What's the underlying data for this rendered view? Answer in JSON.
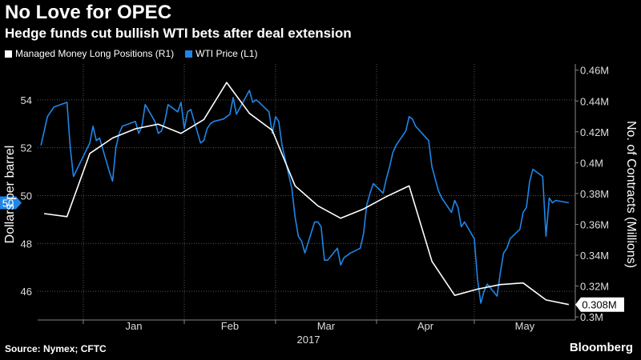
{
  "header": {
    "title": "No Love for OPEC",
    "subtitle": "Hedge funds cut bullish WTI bets after deal extension"
  },
  "footer": {
    "source": "Source: Nymex; CFTC",
    "brand": "Bloomberg"
  },
  "colors": {
    "background": "#000000",
    "wti": "#1f86e8",
    "positions": "#ffffff",
    "grid": "#555555"
  },
  "chart_data": {
    "type": "line",
    "x_ticks": [
      "Jan",
      "Feb",
      "Mar",
      "Apr",
      "May"
    ],
    "x_sublabel": "2017",
    "ylabel_left": "Dollars per barrel",
    "ylabel_right": "No. of Contracts (Millions)",
    "ylim_left": [
      44.8,
      55.5
    ],
    "ylim_right": [
      0.298,
      0.464
    ],
    "yticks_left": [
      "46",
      "48",
      "50",
      "52",
      "54"
    ],
    "yticks_right": [
      "0.3M",
      "0.32M",
      "0.34M",
      "0.36M",
      "0.38M",
      "0.4M",
      "0.42M",
      "0.44M",
      "0.46M"
    ],
    "left_last_label": "50",
    "right_last_label": "0.308M",
    "grid": true,
    "series": [
      {
        "name": "Managed Money Long Positions (R1)",
        "axis": "right",
        "color": "#ffffff",
        "x": [
          "2016-12-20",
          "2016-12-27",
          "2017-01-03",
          "2017-01-10",
          "2017-01-17",
          "2017-01-24",
          "2017-01-31",
          "2017-02-07",
          "2017-02-14",
          "2017-02-21",
          "2017-02-28",
          "2017-03-07",
          "2017-03-14",
          "2017-03-21",
          "2017-03-28",
          "2017-04-04",
          "2017-04-11",
          "2017-04-18",
          "2017-04-25",
          "2017-05-02",
          "2017-05-09",
          "2017-05-16",
          "2017-05-23",
          "2017-05-30"
        ],
        "values": [
          0.367,
          0.365,
          0.406,
          0.416,
          0.422,
          0.425,
          0.419,
          0.428,
          0.452,
          0.432,
          0.421,
          0.385,
          0.372,
          0.364,
          0.37,
          0.378,
          0.385,
          0.336,
          0.314,
          0.318,
          0.321,
          0.322,
          0.311,
          0.308
        ]
      },
      {
        "name": "WTI Price (L1)",
        "axis": "left",
        "color": "#1f86e8",
        "x": [
          "2016-12-19",
          "2016-12-21",
          "2016-12-23",
          "2016-12-27",
          "2016-12-28",
          "2016-12-29",
          "2017-01-03",
          "2017-01-04",
          "2017-01-05",
          "2017-01-06",
          "2017-01-09",
          "2017-01-10",
          "2017-01-11",
          "2017-01-12",
          "2017-01-13",
          "2017-01-17",
          "2017-01-18",
          "2017-01-19",
          "2017-01-20",
          "2017-01-23",
          "2017-01-24",
          "2017-01-25",
          "2017-01-26",
          "2017-01-27",
          "2017-01-30",
          "2017-01-31",
          "2017-02-01",
          "2017-02-02",
          "2017-02-03",
          "2017-02-06",
          "2017-02-07",
          "2017-02-08",
          "2017-02-09",
          "2017-02-10",
          "2017-02-13",
          "2017-02-14",
          "2017-02-15",
          "2017-02-16",
          "2017-02-17",
          "2017-02-21",
          "2017-02-22",
          "2017-02-23",
          "2017-02-24",
          "2017-02-27",
          "2017-02-28",
          "2017-03-01",
          "2017-03-02",
          "2017-03-03",
          "2017-03-06",
          "2017-03-07",
          "2017-03-08",
          "2017-03-09",
          "2017-03-10",
          "2017-03-13",
          "2017-03-14",
          "2017-03-15",
          "2017-03-16",
          "2017-03-17",
          "2017-03-20",
          "2017-03-21",
          "2017-03-22",
          "2017-03-23",
          "2017-03-24",
          "2017-03-27",
          "2017-03-28",
          "2017-03-29",
          "2017-03-30",
          "2017-03-31",
          "2017-04-03",
          "2017-04-04",
          "2017-04-05",
          "2017-04-06",
          "2017-04-07",
          "2017-04-10",
          "2017-04-11",
          "2017-04-12",
          "2017-04-13",
          "2017-04-17",
          "2017-04-18",
          "2017-04-19",
          "2017-04-20",
          "2017-04-21",
          "2017-04-24",
          "2017-04-25",
          "2017-04-26",
          "2017-04-27",
          "2017-04-28",
          "2017-05-01",
          "2017-05-02",
          "2017-05-03",
          "2017-05-04",
          "2017-05-05",
          "2017-05-08",
          "2017-05-09",
          "2017-05-10",
          "2017-05-11",
          "2017-05-12",
          "2017-05-15",
          "2017-05-16",
          "2017-05-17",
          "2017-05-18",
          "2017-05-19",
          "2017-05-22",
          "2017-05-23",
          "2017-05-24",
          "2017-05-25",
          "2017-05-26",
          "2017-05-30"
        ],
        "values": [
          52.1,
          53.3,
          53.7,
          53.9,
          52.0,
          50.8,
          52.2,
          52.9,
          52.3,
          52.4,
          51.0,
          50.6,
          52.0,
          52.6,
          52.9,
          53.1,
          52.6,
          52.9,
          53.8,
          53.1,
          52.6,
          52.7,
          53.1,
          53.8,
          53.5,
          53.9,
          52.8,
          53.5,
          53.6,
          52.2,
          52.3,
          52.8,
          53.0,
          53.1,
          53.2,
          53.3,
          53.4,
          54.1,
          53.4,
          54.4,
          53.9,
          54.0,
          53.9,
          53.5,
          52.6,
          53.3,
          53.1,
          52.1,
          50.3,
          49.1,
          48.3,
          48.1,
          47.6,
          48.9,
          48.9,
          48.7,
          47.3,
          47.3,
          47.8,
          47.1,
          47.4,
          47.5,
          47.6,
          47.8,
          48.4,
          49.6,
          50.1,
          50.5,
          50.1,
          50.7,
          51.2,
          51.8,
          52.1,
          52.7,
          53.3,
          53.2,
          52.9,
          52.3,
          51.2,
          50.7,
          50.2,
          49.9,
          49.3,
          49.8,
          49.5,
          48.7,
          48.9,
          48.2,
          46.5,
          45.5,
          46.0,
          46.3,
          45.8,
          46.8,
          47.6,
          47.8,
          48.2,
          48.6,
          49.3,
          49.5,
          50.6,
          51.1,
          50.8,
          48.3,
          49.9,
          49.7,
          49.8,
          49.7
        ]
      }
    ]
  }
}
